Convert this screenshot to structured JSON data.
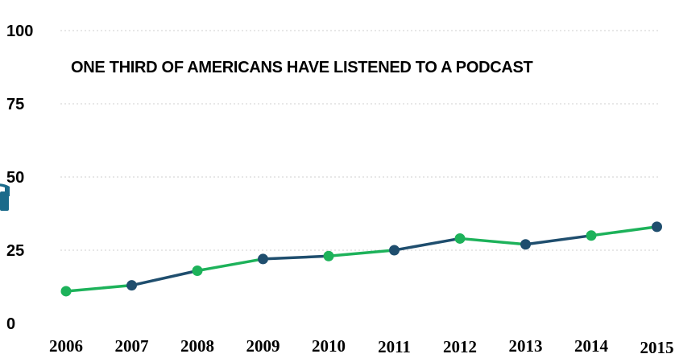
{
  "chart_data": {
    "type": "line",
    "title": "ONE THIRD OF AMERICANS HAVE LISTENED TO A PODCAST",
    "xlabel": "",
    "ylabel": "",
    "categories": [
      "2006",
      "2007",
      "2008",
      "2009",
      "2010",
      "2011",
      "2012",
      "2013",
      "2014",
      "2015"
    ],
    "series": [
      {
        "values": [
          11,
          13,
          18,
          22,
          23,
          25,
          29,
          27,
          30,
          33
        ]
      }
    ],
    "ylim": [
      0,
      100
    ],
    "yticks": [
      "0",
      "25",
      "50",
      "75",
      "100"
    ],
    "grid": true,
    "legend": "none",
    "colors": {
      "green": "#1db25a",
      "navy": "#1f4e6e",
      "logo": "#1a6a8a"
    },
    "marker_colors": [
      "green",
      "navy",
      "green",
      "navy",
      "green",
      "navy",
      "green",
      "navy",
      "green",
      "navy"
    ]
  }
}
